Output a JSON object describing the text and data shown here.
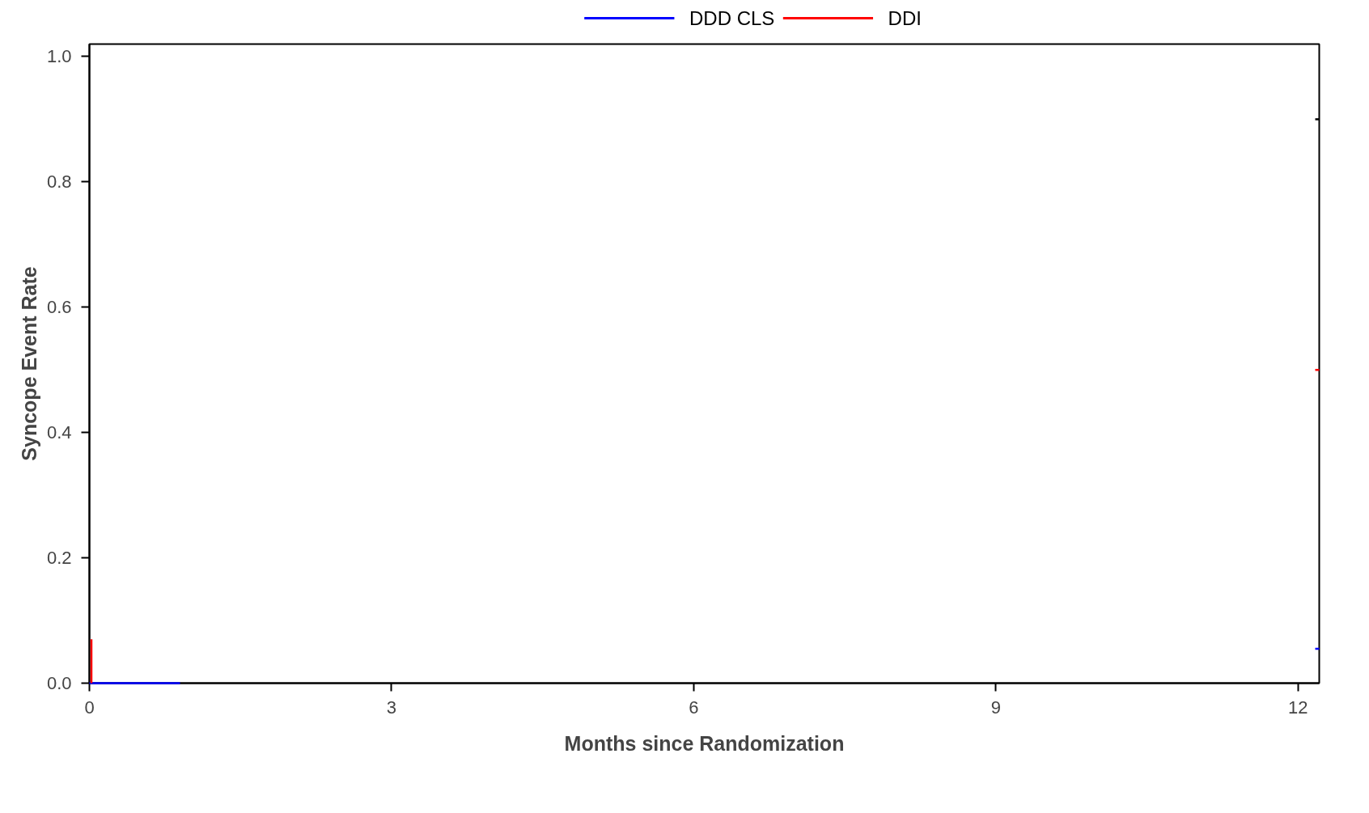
{
  "chart_data": {
    "type": "line",
    "xlabel": "Months since Randomization",
    "ylabel": "Syncope Event Rate",
    "xlim": [
      0,
      12.21
    ],
    "ylim": [
      0,
      1.02
    ],
    "xticks": [
      0,
      3,
      6,
      9,
      12
    ],
    "yticks": [
      {
        "value": 0,
        "label": "0.0"
      },
      {
        "value": 0.2,
        "label": "0.2"
      },
      {
        "value": 0.4,
        "label": "0.4"
      },
      {
        "value": 0.6,
        "label": "0.6"
      },
      {
        "value": 0.8,
        "label": "0.8"
      },
      {
        "value": 1,
        "label": "1.0"
      }
    ],
    "grid": false,
    "legend": "top",
    "marker": "none",
    "line_style": "solid",
    "series": [
      {
        "name": "DDD CLS",
        "color": "#0000ff",
        "x": [
          0,
          0.9,
          6,
          12.17,
          12.21
        ],
        "values": [
          0,
          0,
          null,
          0.055,
          0.055
        ]
      },
      {
        "name": "DDI",
        "color": "#ff0000",
        "x": [
          0.02,
          0.02,
          6,
          12.17,
          12.21
        ],
        "values": [
          0,
          0.07,
          null,
          0.5,
          0.5
        ]
      },
      {
        "color": "#000000",
        "x": [
          12.17,
          12.21
        ],
        "values": [
          0.9,
          0.9
        ]
      }
    ]
  }
}
